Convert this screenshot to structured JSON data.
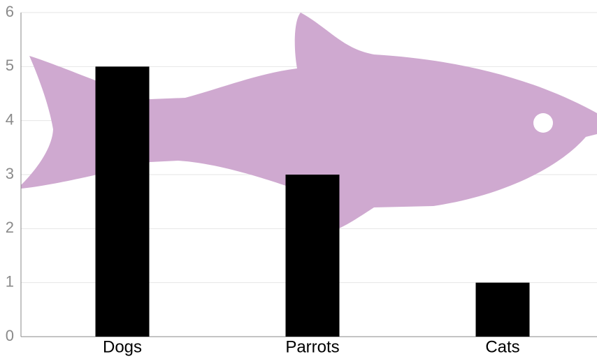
{
  "chart_data": {
    "type": "bar",
    "categories": [
      "Dogs",
      "Parrots",
      "Cats"
    ],
    "values": [
      5,
      3,
      1
    ],
    "color": "#000000",
    "ylim": [
      0,
      6
    ],
    "yticks": [
      0,
      1,
      2,
      3,
      4,
      5,
      6
    ],
    "grid": true
  }
}
